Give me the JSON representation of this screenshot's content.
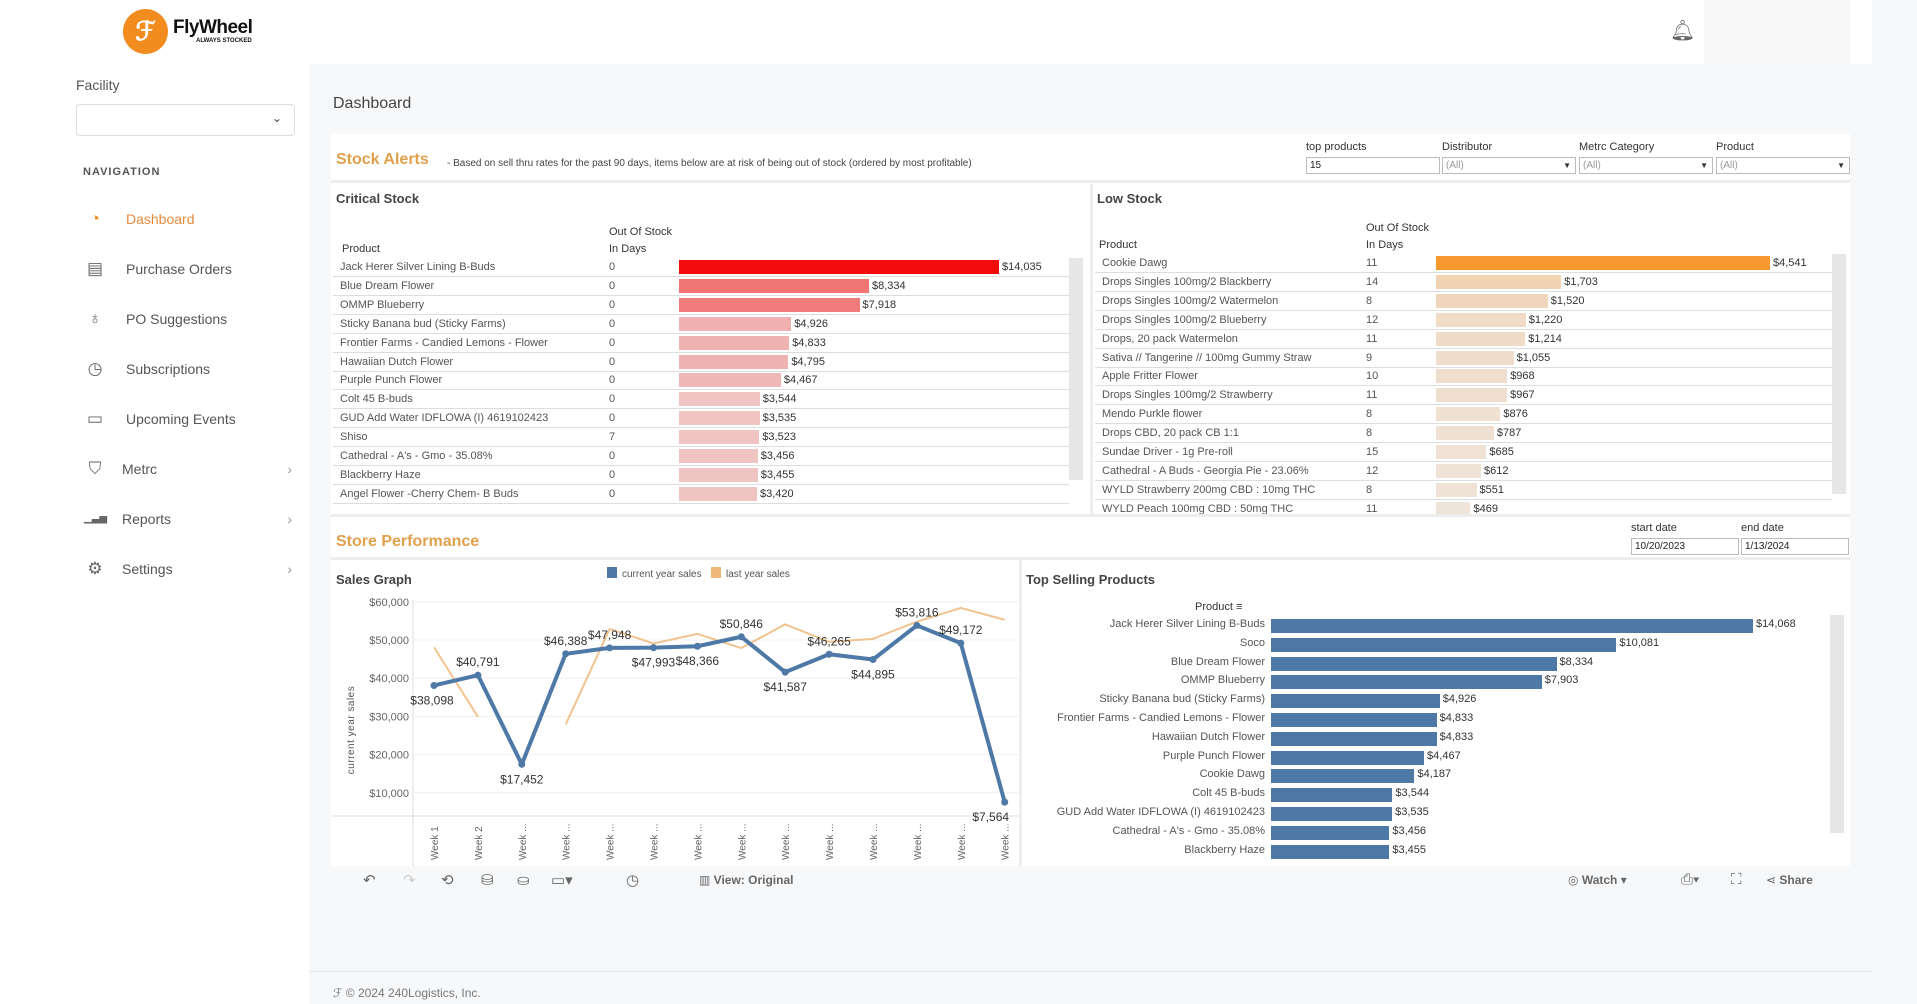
{
  "brand": {
    "name": "FlyWheel",
    "tagline": "ALWAYS STOCKED",
    "logo_icon": "flywheel-logo"
  },
  "sidebar": {
    "facility_label": "Facility",
    "facility_value": "",
    "nav_heading": "NAVIGATION",
    "items": [
      {
        "label": "Dashboard",
        "icon": "gauge-icon",
        "glyph": "◔",
        "active": true
      },
      {
        "label": "Purchase Orders",
        "icon": "document-list-icon",
        "glyph": "▤"
      },
      {
        "label": "PO Suggestions",
        "icon": "lightbulb-icon",
        "glyph": "♁"
      },
      {
        "label": "Subscriptions",
        "icon": "clock-icon",
        "glyph": "◷"
      },
      {
        "label": "Upcoming Events",
        "icon": "calendar-icon",
        "glyph": "▭"
      },
      {
        "label": "Metrc",
        "icon": "shield-icon",
        "glyph": "⛉",
        "sub": true
      },
      {
        "label": "Reports",
        "icon": "bar-chart-icon",
        "glyph": "▁▃▅",
        "sub": true
      },
      {
        "label": "Settings",
        "icon": "gear-icon",
        "glyph": "⚙",
        "sub": true
      }
    ]
  },
  "header": {
    "page_title": "Dashboard"
  },
  "stock_alerts": {
    "title": "Stock Alerts",
    "note": "- Based on sell thru rates for the past 90 days, items below are at risk of being out of stock (ordered by most profitable)",
    "filters": [
      {
        "label": "top products",
        "value": "15",
        "type": "input"
      },
      {
        "label": "Distributor",
        "value": "(All)",
        "type": "select"
      },
      {
        "label": "Metrc Category",
        "value": "(All)",
        "type": "select"
      },
      {
        "label": "Product",
        "value": "(All)",
        "type": "select"
      }
    ],
    "colors": {
      "critical": "#f20c0c",
      "low": "#f7992f"
    },
    "critical": {
      "title": "Critical Stock",
      "col_product": "Product",
      "col_days_1": "Out Of Stock",
      "col_days_2": "In Days",
      "rows": [
        [
          "Jack Herer Silver Lining B-Buds",
          "0",
          14035,
          "$14,035"
        ],
        [
          "Blue Dream Flower",
          "0",
          8334,
          "$8,334"
        ],
        [
          "OMMP Blueberry",
          "0",
          7918,
          "$7,918"
        ],
        [
          "Sticky Banana bud (Sticky Farms)",
          "0",
          4926,
          "$4,926"
        ],
        [
          "Frontier Farms - Candied Lemons - Flower",
          "0",
          4833,
          "$4,833"
        ],
        [
          "Hawaiian Dutch Flower",
          "0",
          4795,
          "$4,795"
        ],
        [
          "Purple Punch Flower",
          "0",
          4467,
          "$4,467"
        ],
        [
          "Colt 45 B-buds",
          "0",
          3544,
          "$3,544"
        ],
        [
          "GUD Add Water IDFLOWA (I) 4619102423",
          "0",
          3535,
          "$3,535"
        ],
        [
          "Shiso",
          "7",
          3523,
          "$3,523"
        ],
        [
          "Cathedral - A's - Gmo - 35.08%",
          "0",
          3456,
          "$3,456"
        ],
        [
          "Blackberry Haze",
          "0",
          3455,
          "$3,455"
        ],
        [
          "Angel Flower -Cherry Chem- B Buds",
          "0",
          3420,
          "$3,420"
        ]
      ]
    },
    "low": {
      "title": "Low Stock",
      "col_product": "Product",
      "col_days_1": "Out Of Stock",
      "col_days_2": "In Days",
      "rows": [
        [
          "Cookie Dawg",
          "11",
          4541,
          "$4,541"
        ],
        [
          "Drops Singles 100mg/2 Blackberry",
          "14",
          1703,
          "$1,703"
        ],
        [
          "Drops Singles 100mg/2 Watermelon",
          "8",
          1520,
          "$1,520"
        ],
        [
          "Drops Singles 100mg/2 Blueberry",
          "12",
          1220,
          "$1,220"
        ],
        [
          "Drops, 20 pack Watermelon",
          "11",
          1214,
          "$1,214"
        ],
        [
          "Sativa // Tangerine // 100mg Gummy Straw",
          "9",
          1055,
          "$1,055"
        ],
        [
          "Apple Fritter Flower",
          "10",
          968,
          "$968"
        ],
        [
          "Drops Singles 100mg/2 Strawberry",
          "11",
          967,
          "$967"
        ],
        [
          "Mendo Purkle flower",
          "8",
          876,
          "$876"
        ],
        [
          "Drops CBD, 20 pack CB 1:1",
          "8",
          787,
          "$787"
        ],
        [
          "Sundae Driver - 1g Pre-roll",
          "15",
          685,
          "$685"
        ],
        [
          "Cathedral - A Buds - Georgia Pie - 23.06%",
          "12",
          612,
          "$612"
        ],
        [
          "WYLD Strawberry 200mg CBD : 10mg THC",
          "8",
          551,
          "$551"
        ],
        [
          "WYLD Peach 100mg CBD : 50mg THC",
          "11",
          469,
          "$469"
        ]
      ]
    }
  },
  "store_performance": {
    "title": "Store Performance",
    "start_label": "start date",
    "start_value": "10/20/2023",
    "end_label": "end date",
    "end_value": "1/13/2024"
  },
  "chart_data": [
    {
      "type": "line",
      "title": "Sales Graph",
      "ylabel": "current year sales",
      "ylim": [
        0,
        60000
      ],
      "yticks": [
        "$10,000",
        "$20,000",
        "$30,000",
        "$40,000",
        "$50,000",
        "$60,000"
      ],
      "ytick_values": [
        10000,
        20000,
        30000,
        40000,
        50000,
        60000
      ],
      "categories": [
        "Week 1",
        "Week 2",
        "Week ...",
        "Week ...",
        "Week ...",
        "Week ...",
        "Week ...",
        "Week ...",
        "Week ...",
        "Week ...",
        "Week ...",
        "Week ...",
        "Week ...",
        "Week ..."
      ],
      "grid": true,
      "legend": "top-right",
      "series": [
        {
          "name": "current year sales",
          "color": "#4e79a7",
          "values": [
            38098,
            40791,
            17452,
            46388,
            47948,
            47993,
            48366,
            50846,
            41587,
            46265,
            44895,
            53816,
            49172,
            7564
          ],
          "labels": [
            "$38,098",
            "$40,791",
            "$17,452",
            "$46,388",
            "$47,948",
            "$47,993",
            "$48,366",
            "$50,846",
            "$41,587",
            "$46,265",
            "$44,895",
            "$53,816",
            "$49,172",
            "$7,564"
          ]
        },
        {
          "name": "last year sales",
          "color": "#f1c38e",
          "values": [
            48100,
            29900,
            null,
            27900,
            52900,
            49100,
            51600,
            47900,
            54100,
            49500,
            50300,
            54800,
            58400,
            55300
          ]
        }
      ]
    },
    {
      "type": "bar",
      "title": "Top Selling Products",
      "ylabel": "Product",
      "orientation": "horizontal",
      "color": "#4e79a7",
      "categories": [
        "Jack Herer Silver Lining B-Buds",
        "Soco",
        "Blue Dream Flower",
        "OMMP Blueberry",
        "Sticky Banana bud (Sticky Farms)",
        "Frontier Farms - Candied Lemons - Flower",
        "Hawaiian Dutch Flower",
        "Purple Punch Flower",
        "Cookie Dawg",
        "Colt 45 B-buds",
        "GUD Add Water IDFLOWA (I) 4619102423",
        "Cathedral - A's - Gmo - 35.08%",
        "Blackberry Haze"
      ],
      "values": [
        14068,
        10081,
        8334,
        7903,
        4926,
        4833,
        4833,
        4467,
        4187,
        3544,
        3535,
        3456,
        3455
      ],
      "labels": [
        "$14,068",
        "$10,081",
        "$8,334",
        "$7,903",
        "$4,926",
        "$4,833",
        "$4,833",
        "$4,467",
        "$4,187",
        "$3,544",
        "$3,535",
        "$3,456",
        "$3,455"
      ]
    }
  ],
  "toolbar": {
    "view_label": "View: Original",
    "watch_label": "Watch",
    "share_label": "Share"
  },
  "footer": {
    "text": "© 2024 240Logistics, Inc."
  }
}
